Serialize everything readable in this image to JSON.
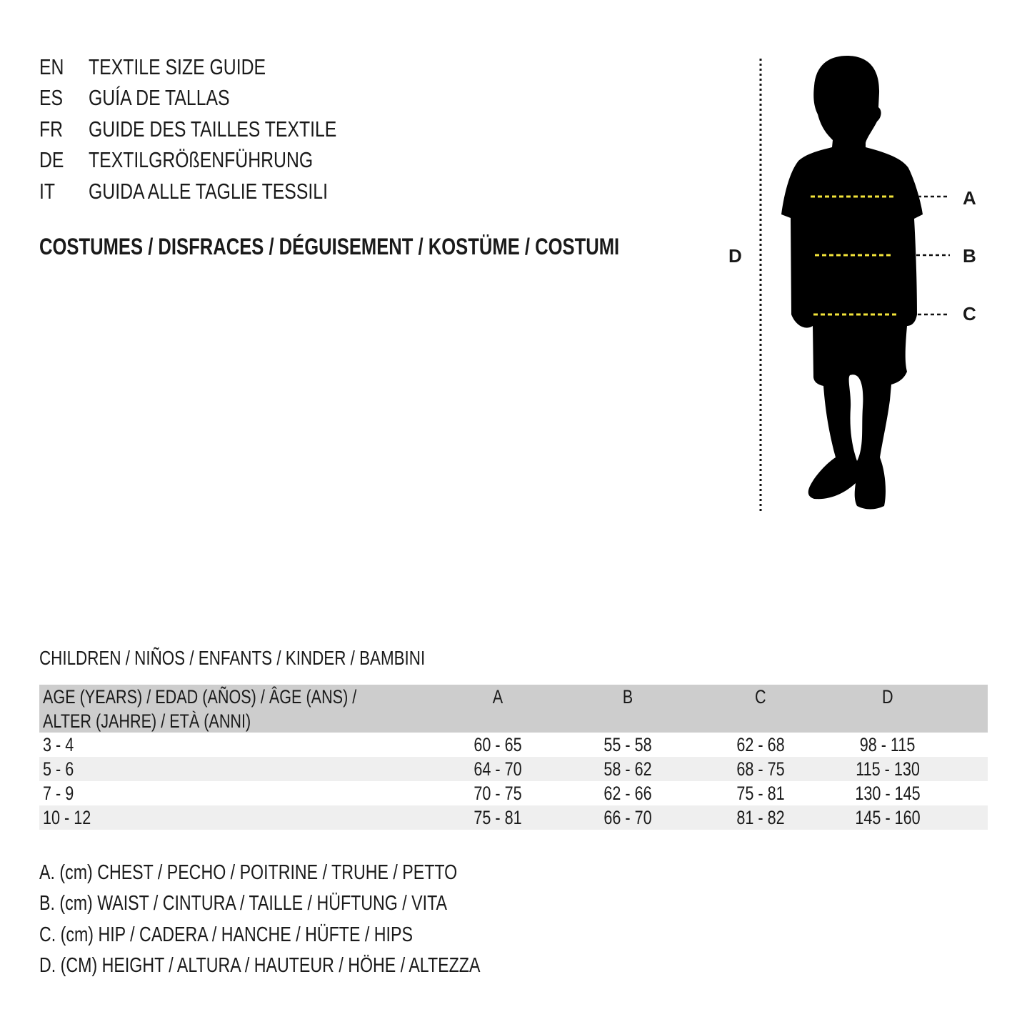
{
  "titles": [
    {
      "code": "EN",
      "text": "TEXTILE SIZE GUIDE"
    },
    {
      "code": "ES",
      "text": "GUÍA DE TALLAS"
    },
    {
      "code": "FR",
      "text": "GUIDE DES TAILLES TEXTILE"
    },
    {
      "code": "DE",
      "text": "TEXTILGRÖßENFÜHRUNG"
    },
    {
      "code": "IT",
      "text": "GUIDA ALLE TAGLIE TESSILI"
    }
  ],
  "category": "COSTUMES / DISFRACES / DÉGUISEMENT / KOSTÜME / COSTUMI",
  "figure": {
    "labels": {
      "A": "A",
      "B": "B",
      "C": "C",
      "D": "D"
    },
    "silhouette_color": "#000000",
    "measure_line_color": "#f2e33a"
  },
  "table": {
    "caption": "CHILDREN / NIÑOS / ENFANTS / KINDER / BAMBINI",
    "header": {
      "age_line1": "AGE (YEARS) / EDAD (AÑOS) / ÂGE (ANS) /",
      "age_line2": "ALTER (JAHRE) / ETÀ (ANNI)",
      "cols": [
        "A",
        "B",
        "C",
        "D"
      ]
    },
    "rows": [
      {
        "age": "3 - 4",
        "values": [
          "60 - 65",
          "55 - 58",
          "62 - 68",
          "98 - 115"
        ]
      },
      {
        "age": "5 - 6",
        "values": [
          "64 - 70",
          "58 - 62",
          "68 - 75",
          "115 - 130"
        ]
      },
      {
        "age": "7 - 9",
        "values": [
          "70 - 75",
          "62 - 66",
          "75 - 81",
          "130 - 145"
        ]
      },
      {
        "age": "10 - 12",
        "values": [
          "75 - 81",
          "66 - 70",
          "81 - 82",
          "145 - 160"
        ]
      }
    ]
  },
  "legend": [
    "A. (cm) CHEST / PECHO / POITRINE / TRUHE / PETTO",
    "B. (cm) WAIST / CINTURA / TAILLE / HÜFTUNG / VITA",
    "C. (cm) HIP / CADERA / HANCHE / HÜFTE / HIPS",
    "D. (CM) HEIGHT / ALTURA / HAUTEUR / HÖHE / ALTEZZA"
  ]
}
